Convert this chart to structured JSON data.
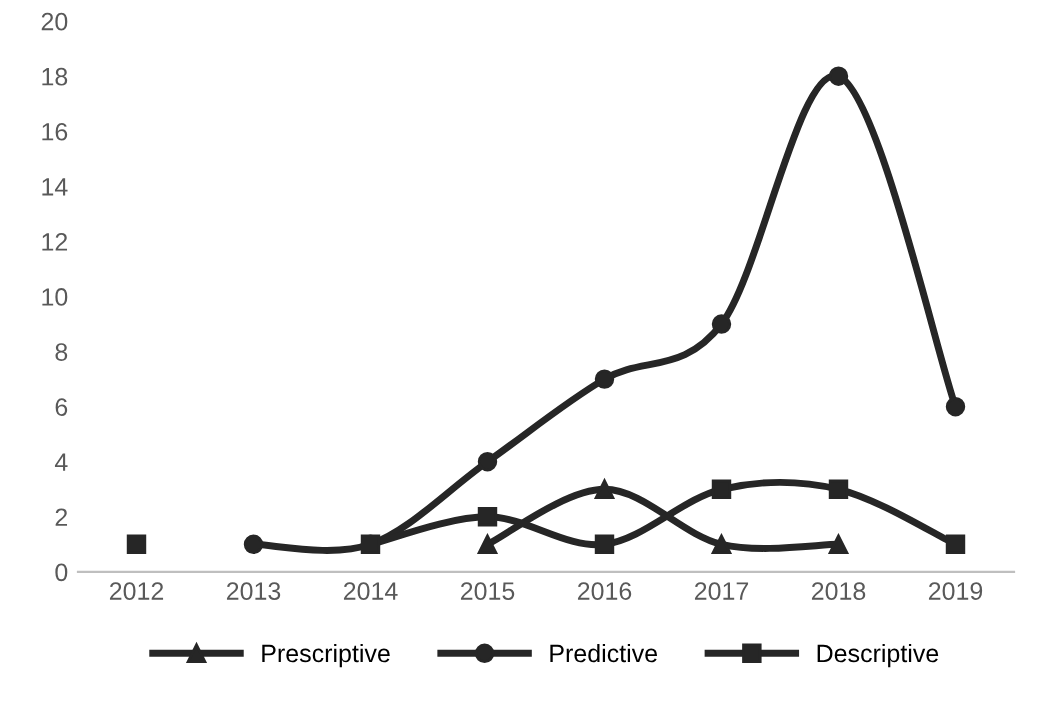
{
  "chart_data": {
    "type": "line",
    "categories": [
      "2012",
      "2013",
      "2014",
      "2015",
      "2016",
      "2017",
      "2018",
      "2019"
    ],
    "series": [
      {
        "name": "Prescriptive",
        "color": "#262626",
        "marker": "triangle",
        "values": [
          null,
          null,
          null,
          1,
          3,
          1,
          1,
          null
        ]
      },
      {
        "name": "Predictive",
        "color": "#262626",
        "marker": "circle",
        "values": [
          null,
          1,
          1,
          4,
          7,
          9,
          18,
          6
        ]
      },
      {
        "name": "Descriptive",
        "color": "#262626",
        "marker": "square",
        "values": [
          1,
          null,
          1,
          2,
          1,
          3,
          3,
          1
        ]
      }
    ],
    "ylim": [
      0,
      20
    ],
    "yticks": [
      0,
      2,
      4,
      6,
      8,
      10,
      12,
      14,
      16,
      18,
      20
    ],
    "grid": false,
    "legend": "bottom",
    "line_style": "solid"
  }
}
